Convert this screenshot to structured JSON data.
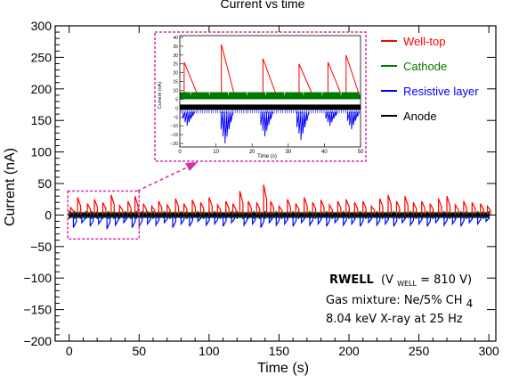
{
  "chart_data": {
    "type": "line",
    "title": "Current vs time",
    "xlabel": "Time (s)",
    "ylabel": "Current (nA)",
    "xlim": [
      -10,
      305
    ],
    "ylim": [
      -200,
      300
    ],
    "x_ticks": [
      0,
      50,
      100,
      150,
      200,
      250,
      300
    ],
    "x_tick_labels": [
      "0",
      "50",
      "100",
      "150",
      "200",
      "250",
      "300"
    ],
    "y_ticks": [
      -200,
      -150,
      -100,
      -50,
      0,
      50,
      100,
      150,
      200,
      250,
      300
    ],
    "y_tick_labels": [
      "−200",
      "−150",
      "−100",
      "−50",
      "0",
      "50",
      "100",
      "150",
      "200",
      "250",
      "300"
    ],
    "grid": false,
    "legend_position": "top-right",
    "series": [
      {
        "name": "Well-top",
        "color": "#ff0000",
        "spikes": [
          [
            1,
            12
          ],
          [
            6,
            28
          ],
          [
            13,
            18
          ],
          [
            18,
            25
          ],
          [
            24,
            20
          ],
          [
            30,
            32
          ],
          [
            36,
            15
          ],
          [
            42,
            22
          ],
          [
            47,
            30
          ],
          [
            53,
            18
          ],
          [
            59,
            14
          ],
          [
            64,
            22
          ],
          [
            70,
            16
          ],
          [
            76,
            26
          ],
          [
            82,
            18
          ],
          [
            88,
            24
          ],
          [
            94,
            20
          ],
          [
            100,
            28
          ],
          [
            106,
            16
          ],
          [
            112,
            22
          ],
          [
            117,
            18
          ],
          [
            122,
            38
          ],
          [
            128,
            22
          ],
          [
            134,
            20
          ],
          [
            139,
            48
          ],
          [
            144,
            22
          ],
          [
            150,
            14
          ],
          [
            156,
            25
          ],
          [
            162,
            18
          ],
          [
            168,
            28
          ],
          [
            174,
            20
          ],
          [
            180,
            24
          ],
          [
            186,
            16
          ],
          [
            192,
            22
          ],
          [
            198,
            25
          ],
          [
            204,
            20
          ],
          [
            210,
            22
          ],
          [
            216,
            14
          ],
          [
            222,
            26
          ],
          [
            228,
            32
          ],
          [
            234,
            22
          ],
          [
            240,
            30
          ],
          [
            246,
            20
          ],
          [
            252,
            22
          ],
          [
            258,
            18
          ],
          [
            264,
            26
          ],
          [
            270,
            30
          ],
          [
            276,
            16
          ],
          [
            282,
            22
          ],
          [
            288,
            20
          ],
          [
            294,
            18
          ],
          [
            299,
            14
          ]
        ]
      },
      {
        "name": "Cathode",
        "color": "#007a00",
        "band": [
          -5,
          5
        ]
      },
      {
        "name": "Resistive layer",
        "color": "#0000ff",
        "spikes": [
          [
            3,
            -20
          ],
          [
            9,
            -12
          ],
          [
            15,
            -18
          ],
          [
            21,
            -14
          ],
          [
            27,
            -22
          ],
          [
            33,
            -16
          ],
          [
            39,
            -12
          ],
          [
            45,
            -20
          ],
          [
            50,
            -18
          ],
          [
            56,
            -14
          ],
          [
            62,
            -16
          ],
          [
            68,
            -12
          ],
          [
            74,
            -20
          ],
          [
            80,
            -14
          ],
          [
            86,
            -18
          ],
          [
            92,
            -10
          ],
          [
            98,
            -16
          ],
          [
            104,
            -14
          ],
          [
            110,
            -18
          ],
          [
            116,
            -12
          ],
          [
            125,
            -16
          ],
          [
            131,
            -14
          ],
          [
            137,
            -20
          ],
          [
            143,
            -12
          ],
          [
            148,
            -16
          ],
          [
            154,
            -14
          ],
          [
            160,
            -18
          ],
          [
            166,
            -12
          ],
          [
            172,
            -16
          ],
          [
            178,
            -14
          ],
          [
            184,
            -18
          ],
          [
            190,
            -12
          ],
          [
            196,
            -16
          ],
          [
            202,
            -14
          ],
          [
            208,
            -18
          ],
          [
            214,
            -12
          ],
          [
            220,
            -16
          ],
          [
            226,
            -14
          ],
          [
            232,
            -18
          ],
          [
            238,
            -12
          ],
          [
            244,
            -16
          ],
          [
            250,
            -14
          ],
          [
            256,
            -18
          ],
          [
            262,
            -12
          ],
          [
            268,
            -16
          ],
          [
            274,
            -14
          ],
          [
            280,
            -18
          ],
          [
            286,
            -12
          ],
          [
            292,
            -14
          ],
          [
            298,
            -10
          ]
        ]
      },
      {
        "name": "Anode",
        "color": "#000000",
        "band": [
          -3,
          3
        ]
      }
    ],
    "zoom_box": {
      "x": [
        -1,
        50
      ],
      "y": [
        -38,
        38
      ],
      "color": "#d62ea3"
    },
    "inset": {
      "xlabel": "Time (s)",
      "ylabel": "Current (nA)",
      "xlim": [
        0,
        50
      ],
      "ylim": [
        -22,
        41
      ],
      "x_ticks": [
        0,
        10,
        20,
        30,
        40,
        50
      ],
      "x_tick_labels": [
        "0",
        "10",
        "20",
        "30",
        "40",
        "50"
      ],
      "y_ticks": [
        -20,
        -15,
        -10,
        -5,
        0,
        5,
        10,
        15,
        20,
        25,
        30,
        35,
        40
      ],
      "y_tick_labels": [
        "−20",
        "−15",
        "−10",
        "−5",
        "0",
        "5",
        "10",
        "15",
        "20",
        "25",
        "30",
        "35",
        "40"
      ],
      "well_top_peaks": [
        [
          1.2,
          26
        ],
        [
          11.5,
          36
        ],
        [
          23,
          28
        ],
        [
          33,
          25
        ],
        [
          41,
          26
        ],
        [
          46,
          30
        ]
      ],
      "cathode_band": [
        5,
        9
      ],
      "anode_band": [
        -1,
        2
      ],
      "resistive_dips": [
        [
          2.5,
          -10
        ],
        [
          13,
          -20
        ],
        [
          24,
          -16
        ],
        [
          34,
          -18
        ],
        [
          42,
          -10
        ],
        [
          48,
          -12
        ]
      ]
    },
    "annotation": {
      "detector": "RWELL",
      "voltage_prefix": "(V",
      "voltage_sub": "WELL",
      "voltage_suffix": " = 810 V)",
      "gas_prefix": "Gas mixture: Ne/5% CH",
      "gas_sub": "4",
      "xray": "8.04 keV X-ray at 25 Hz"
    }
  }
}
